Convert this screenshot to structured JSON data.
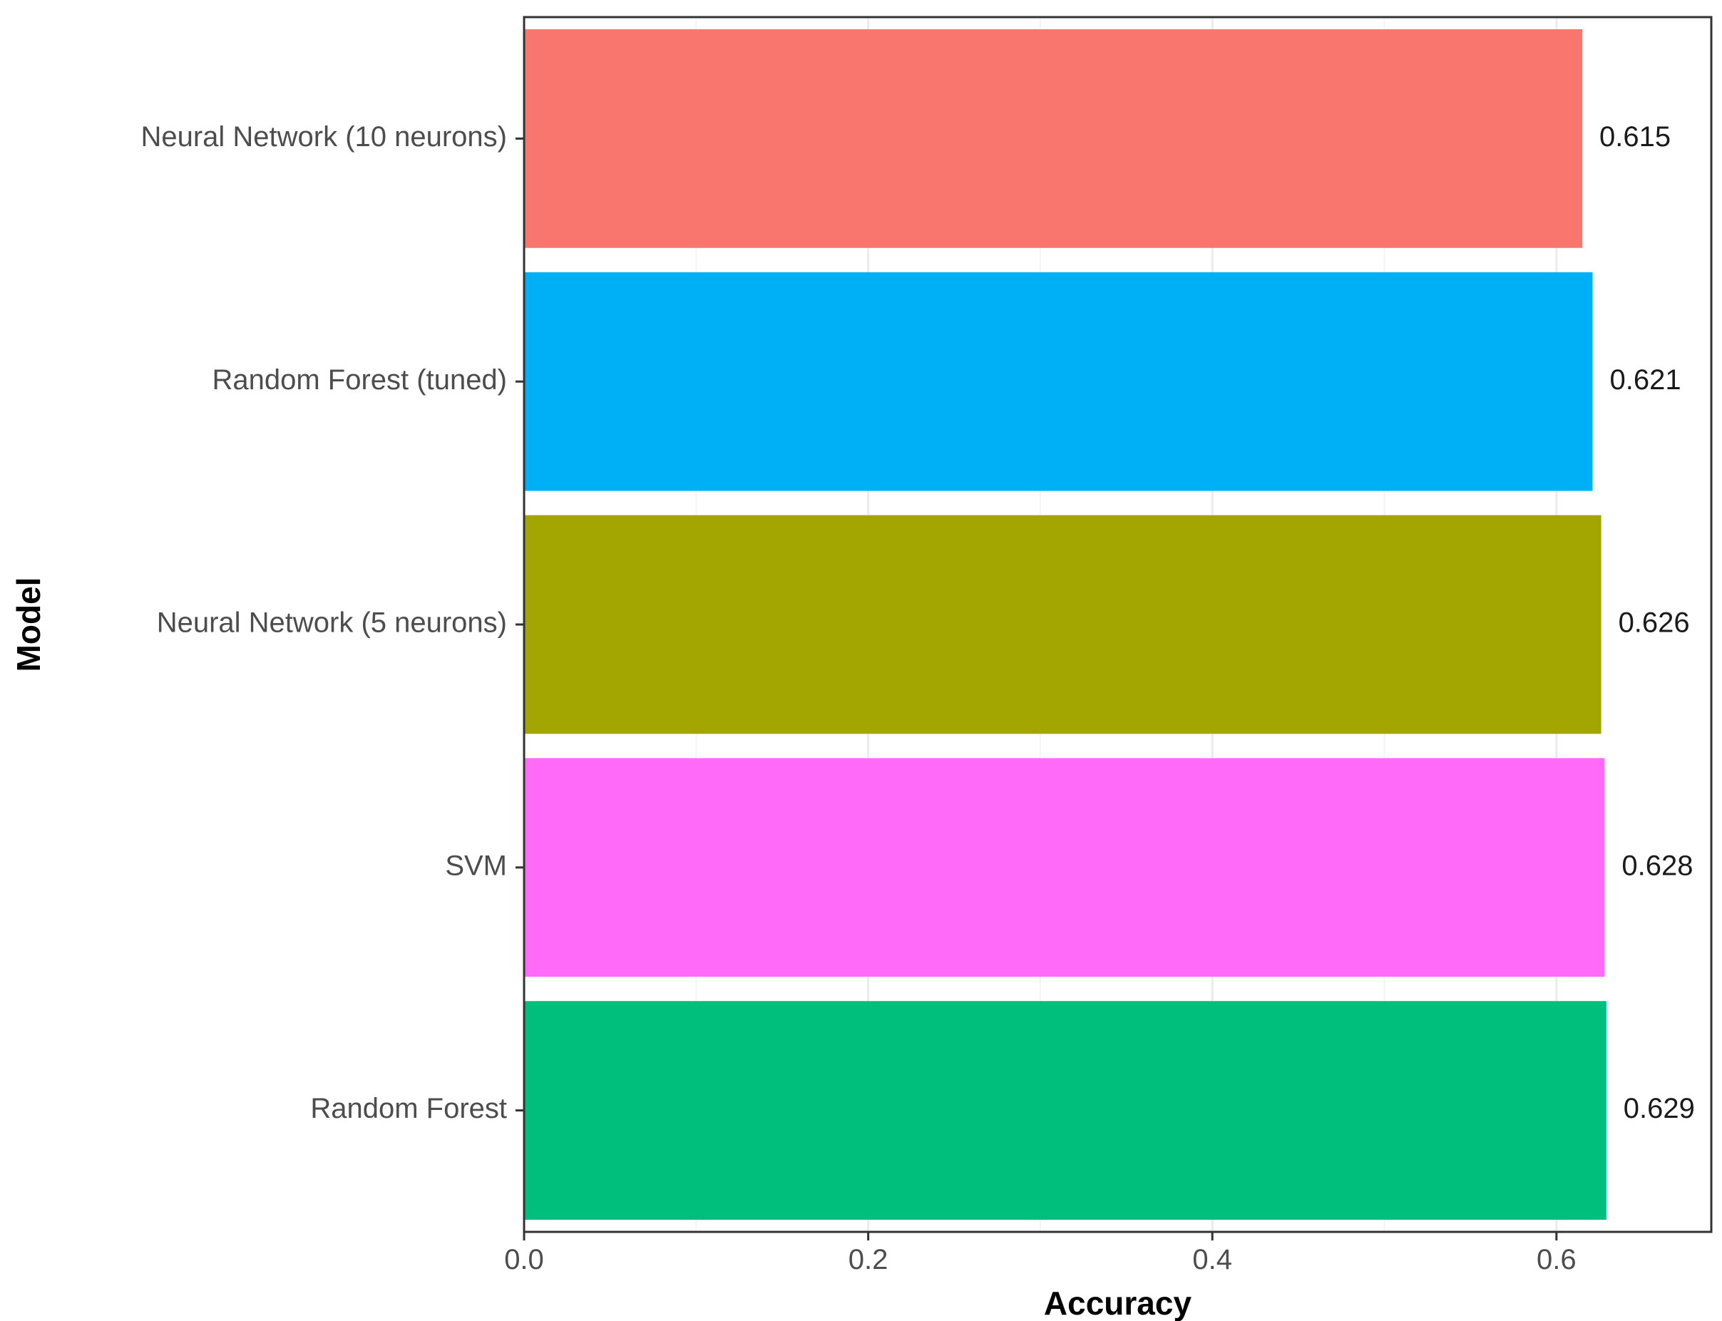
{
  "chart_data": {
    "type": "bar",
    "orientation": "horizontal",
    "categories": [
      "Neural Network (10 neurons)",
      "Random Forest (tuned)",
      "Neural Network (5 neurons)",
      "SVM",
      "Random Forest"
    ],
    "values": [
      0.615,
      0.621,
      0.626,
      0.628,
      0.629
    ],
    "value_labels": [
      "0.615",
      "0.621",
      "0.626",
      "0.628",
      "0.629"
    ],
    "colors": [
      "#F8766D",
      "#00B0F6",
      "#A3A500",
      "#FF6AF9",
      "#00BF7D"
    ],
    "xlabel": "Accuracy",
    "ylabel": "Model",
    "xlim": [
      0,
      0.69
    ],
    "xticks": [
      0.0,
      0.2,
      0.4,
      0.6
    ],
    "xtick_labels": [
      "0.0",
      "0.2",
      "0.4",
      "0.6"
    ],
    "grid": true,
    "legend": "none"
  }
}
